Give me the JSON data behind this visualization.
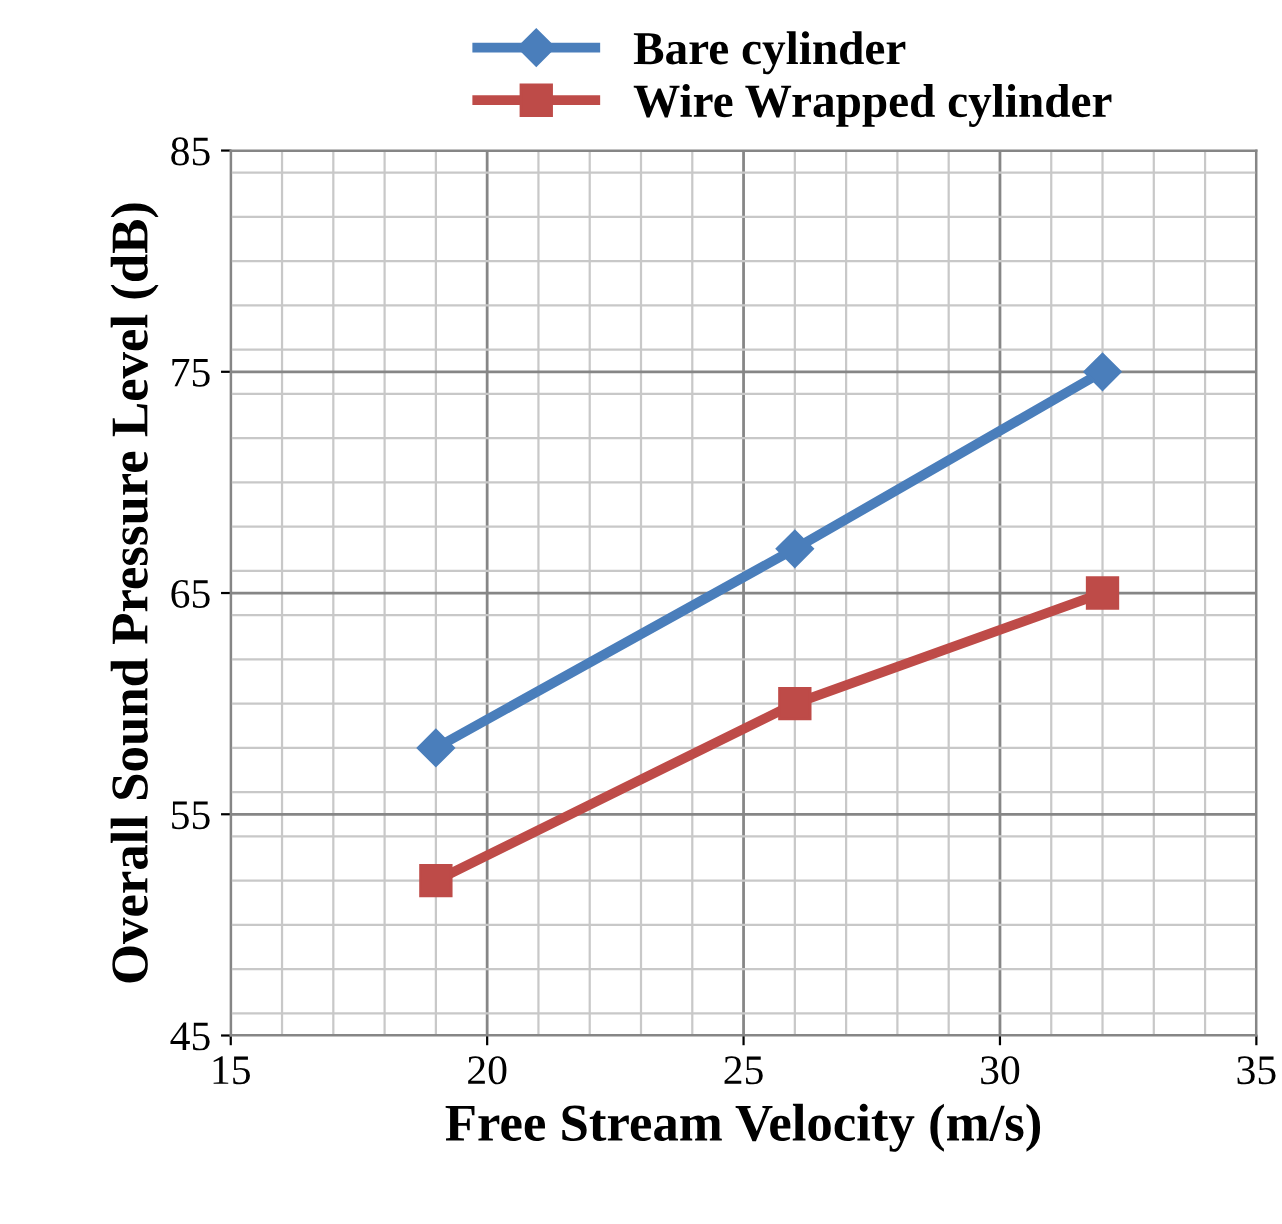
{
  "chart_data": {
    "type": "line",
    "xlabel": "Free Stream Velocity (m/s)",
    "ylabel": "Overall Sound Pressure Level (dB)",
    "xlim": [
      15,
      35
    ],
    "xticks": [
      15,
      20,
      25,
      30,
      35
    ],
    "ylim": [
      45,
      85
    ],
    "yticks": [
      45,
      55,
      65,
      75,
      85
    ],
    "grid": true,
    "legend": "top",
    "line_style": "solid",
    "series": [
      {
        "name": "Bare cylinder",
        "color": "#4a7ebb",
        "marker": "diamond",
        "x": [
          19,
          26,
          32
        ],
        "values": [
          58,
          67,
          75
        ]
      },
      {
        "name": "Wire Wrapped cylinder",
        "color": "#be4b48",
        "marker": "square",
        "x": [
          19,
          26,
          32
        ],
        "values": [
          52,
          60,
          65
        ]
      }
    ]
  }
}
